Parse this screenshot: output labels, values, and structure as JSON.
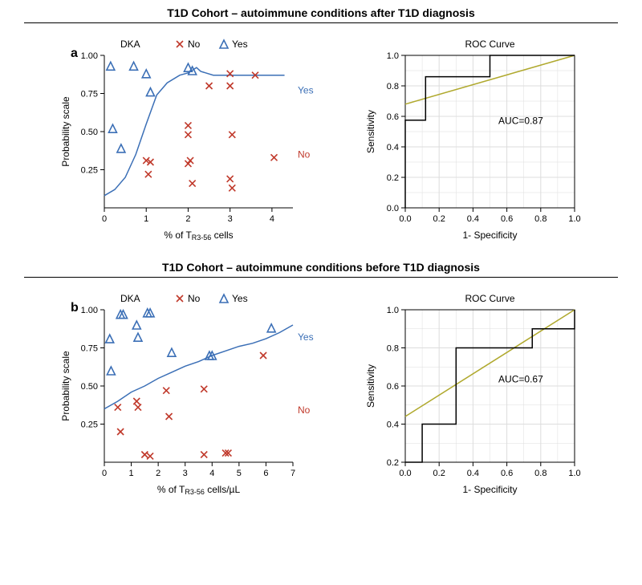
{
  "section_a": {
    "title": "T1D Cohort – autoimmune conditions after T1D diagnosis",
    "panel_letter": "a",
    "scatter": {
      "type": "scatter+line",
      "title": "DKA",
      "legend": {
        "no_label": "No",
        "yes_label": "Yes"
      },
      "xlabel": "% of T_R3-56 cells",
      "ylabel": "Probability scale",
      "xlim": [
        0,
        4.5
      ],
      "ylim": [
        0,
        1.0
      ],
      "xticks": [
        0,
        1,
        2,
        3,
        4
      ],
      "yticks": [
        0.25,
        0.5,
        0.75,
        1.0
      ],
      "right_labels": {
        "yes": "Yes",
        "no": "No"
      },
      "right_label_y": {
        "yes": 0.75,
        "no": 0.33
      },
      "colors": {
        "no": "#c0392b",
        "yes": "#3b6fb6",
        "curve": "#3b6fb6",
        "axis": "#000000",
        "bg": "#ffffff"
      },
      "marker_size": 8,
      "line_width": 1.5,
      "no_points": [
        [
          1.0,
          0.31
        ],
        [
          1.05,
          0.22
        ],
        [
          1.1,
          0.3
        ],
        [
          2.0,
          0.54
        ],
        [
          2.0,
          0.48
        ],
        [
          2.05,
          0.31
        ],
        [
          2.0,
          0.29
        ],
        [
          2.1,
          0.16
        ],
        [
          2.5,
          0.8
        ],
        [
          3.0,
          0.88
        ],
        [
          3.0,
          0.8
        ],
        [
          3.05,
          0.48
        ],
        [
          3.0,
          0.19
        ],
        [
          3.05,
          0.13
        ],
        [
          3.6,
          0.87
        ],
        [
          4.05,
          0.33
        ]
      ],
      "yes_points": [
        [
          0.15,
          0.93
        ],
        [
          0.2,
          0.52
        ],
        [
          0.4,
          0.39
        ],
        [
          0.7,
          0.93
        ],
        [
          1.0,
          0.88
        ],
        [
          1.1,
          0.76
        ],
        [
          2.0,
          0.92
        ],
        [
          2.1,
          0.9
        ]
      ],
      "curve": [
        [
          0.0,
          0.08
        ],
        [
          0.25,
          0.12
        ],
        [
          0.5,
          0.2
        ],
        [
          0.75,
          0.35
        ],
        [
          1.0,
          0.55
        ],
        [
          1.25,
          0.74
        ],
        [
          1.5,
          0.82
        ],
        [
          1.8,
          0.87
        ],
        [
          2.0,
          0.885
        ],
        [
          2.2,
          0.92
        ],
        [
          2.3,
          0.895
        ],
        [
          2.6,
          0.87
        ],
        [
          3.0,
          0.87
        ],
        [
          3.5,
          0.87
        ],
        [
          4.0,
          0.87
        ],
        [
          4.3,
          0.87
        ]
      ]
    },
    "roc": {
      "type": "line",
      "title": "ROC Curve",
      "xlabel": "1- Specificity",
      "ylabel": "Sensitivity",
      "xlim": [
        0.0,
        1.0
      ],
      "ylim": [
        0.0,
        1.0
      ],
      "xticks": [
        0.0,
        0.2,
        0.4,
        0.6,
        0.8,
        1.0
      ],
      "yticks": [
        0.0,
        0.2,
        0.4,
        0.6,
        0.8,
        1.0
      ],
      "grid_color": "#dddddd",
      "axis_color": "#000000",
      "bg": "#ffffff",
      "roc_color": "#000000",
      "ref_color": "#b0a92e",
      "line_width": 1.5,
      "auc_label": "AUC=0.87",
      "auc_pos": [
        0.55,
        0.55
      ],
      "ref_line": [
        [
          0.0,
          0.68
        ],
        [
          1.0,
          1.0
        ]
      ],
      "roc_steps": [
        [
          0.0,
          0.0
        ],
        [
          0.0,
          0.575
        ],
        [
          0.12,
          0.575
        ],
        [
          0.12,
          0.86
        ],
        [
          0.5,
          0.86
        ],
        [
          0.5,
          1.0
        ],
        [
          1.0,
          1.0
        ]
      ]
    }
  },
  "section_b": {
    "title": "T1D Cohort – autoimmune conditions before T1D diagnosis",
    "panel_letter": "b",
    "scatter": {
      "type": "scatter+line",
      "title": "DKA",
      "legend": {
        "no_label": "No",
        "yes_label": "Yes"
      },
      "xlabel": "% of T_R3-56 cells/µL",
      "ylabel": "Probability scale",
      "xlim": [
        0,
        7
      ],
      "ylim": [
        0,
        1.0
      ],
      "xticks": [
        0,
        1,
        2,
        3,
        4,
        5,
        6,
        7
      ],
      "yticks": [
        0.25,
        0.5,
        0.75,
        1.0
      ],
      "right_labels": {
        "yes": "Yes",
        "no": "No"
      },
      "right_label_y": {
        "yes": 0.8,
        "no": 0.32
      },
      "colors": {
        "no": "#c0392b",
        "yes": "#3b6fb6",
        "curve": "#3b6fb6",
        "axis": "#000000",
        "bg": "#ffffff"
      },
      "marker_size": 8,
      "line_width": 1.5,
      "no_points": [
        [
          0.5,
          0.36
        ],
        [
          0.6,
          0.2
        ],
        [
          1.2,
          0.4
        ],
        [
          1.25,
          0.36
        ],
        [
          1.5,
          0.05
        ],
        [
          1.7,
          0.04
        ],
        [
          2.3,
          0.47
        ],
        [
          2.4,
          0.3
        ],
        [
          3.7,
          0.48
        ],
        [
          3.7,
          0.05
        ],
        [
          4.5,
          0.06
        ],
        [
          4.6,
          0.06
        ],
        [
          5.9,
          0.7
        ]
      ],
      "yes_points": [
        [
          0.2,
          0.81
        ],
        [
          0.25,
          0.6
        ],
        [
          0.6,
          0.97
        ],
        [
          0.7,
          0.97
        ],
        [
          1.2,
          0.9
        ],
        [
          1.25,
          0.82
        ],
        [
          1.6,
          0.98
        ],
        [
          1.7,
          0.98
        ],
        [
          2.5,
          0.72
        ],
        [
          3.9,
          0.7
        ],
        [
          4.0,
          0.7
        ],
        [
          6.2,
          0.88
        ]
      ],
      "curve": [
        [
          0.0,
          0.35
        ],
        [
          0.5,
          0.4
        ],
        [
          1.0,
          0.46
        ],
        [
          1.5,
          0.5
        ],
        [
          2.0,
          0.55
        ],
        [
          2.5,
          0.59
        ],
        [
          3.0,
          0.63
        ],
        [
          3.5,
          0.66
        ],
        [
          4.0,
          0.7
        ],
        [
          4.5,
          0.73
        ],
        [
          5.0,
          0.76
        ],
        [
          5.5,
          0.78
        ],
        [
          6.0,
          0.81
        ],
        [
          6.5,
          0.85
        ],
        [
          7.0,
          0.9
        ]
      ]
    },
    "roc": {
      "type": "line",
      "title": "ROC Curve",
      "xlabel": "1- Specificity",
      "ylabel": "Sensitivity",
      "xlim": [
        0.0,
        1.0
      ],
      "ylim": [
        0.2,
        1.0
      ],
      "xticks": [
        0.0,
        0.2,
        0.4,
        0.6,
        0.8,
        1.0
      ],
      "yticks": [
        0.2,
        0.4,
        0.6,
        0.8,
        1.0
      ],
      "grid_color": "#dddddd",
      "axis_color": "#000000",
      "bg": "#ffffff",
      "roc_color": "#000000",
      "ref_color": "#b0a92e",
      "line_width": 1.5,
      "auc_label": "AUC=0.67",
      "auc_pos": [
        0.55,
        0.62
      ],
      "ref_line": [
        [
          0.0,
          0.44
        ],
        [
          1.0,
          1.0
        ]
      ],
      "roc_steps": [
        [
          0.0,
          0.2
        ],
        [
          0.1,
          0.2
        ],
        [
          0.1,
          0.4
        ],
        [
          0.3,
          0.4
        ],
        [
          0.3,
          0.8
        ],
        [
          0.5,
          0.8
        ],
        [
          0.5,
          0.8
        ],
        [
          0.75,
          0.8
        ],
        [
          0.75,
          0.9
        ],
        [
          1.0,
          0.9
        ],
        [
          1.0,
          1.0
        ]
      ]
    }
  },
  "fonts": {
    "title_size": 14,
    "axis_label_size": 12,
    "tick_size": 11,
    "legend_size": 12,
    "panel_letter_size": 16
  }
}
